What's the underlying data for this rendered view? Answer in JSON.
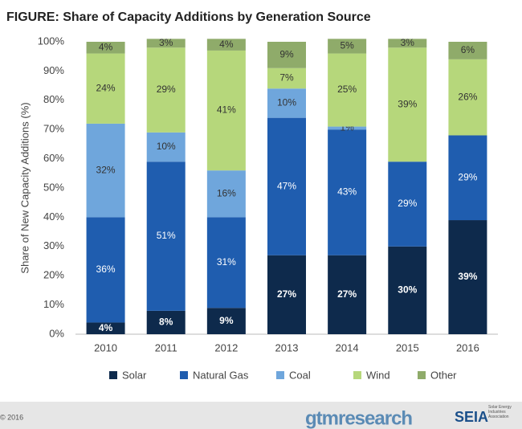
{
  "chart_data": {
    "type": "stacked-bar",
    "title": "FIGURE: Share of Capacity Additions by Generation Source",
    "y_label": "Share of New Capacity Additions (%)",
    "categories": [
      "2010",
      "2011",
      "2012",
      "2013",
      "2014",
      "2015",
      "2016"
    ],
    "series": [
      {
        "name": "Solar",
        "color": "#0e2a4c",
        "values": [
          4,
          8,
          9,
          27,
          27,
          30,
          39
        ],
        "value_labels": [
          "4%",
          "8%",
          "9%",
          "27%",
          "27%",
          "30%",
          "39%"
        ]
      },
      {
        "name": "Natural Gas",
        "color": "#1f5daf",
        "values": [
          36,
          51,
          31,
          47,
          43,
          29,
          29
        ],
        "value_labels": [
          "36%",
          "51%",
          "31%",
          "47%",
          "43%",
          "29%",
          "29%"
        ]
      },
      {
        "name": "Coal",
        "color": "#6fa6dc",
        "values": [
          32,
          10,
          16,
          10,
          1,
          0,
          0
        ],
        "value_labels": [
          "32%",
          "10%",
          "16%",
          "10%",
          "1%",
          null,
          null
        ]
      },
      {
        "name": "Wind",
        "color": "#b6d77b",
        "values": [
          24,
          29,
          41,
          7,
          25,
          39,
          26
        ],
        "value_labels": [
          "24%",
          "29%",
          "41%",
          "7%",
          "25%",
          "39%",
          "26%"
        ]
      },
      {
        "name": "Other",
        "color": "#8fab6a",
        "values": [
          4,
          3,
          4,
          9,
          5,
          3,
          6
        ],
        "value_labels": [
          "4%",
          "3%",
          "4%",
          "9%",
          "5%",
          "3%",
          "6%"
        ]
      }
    ],
    "ylim": [
      0,
      100
    ],
    "yticks": [
      {
        "value": 0,
        "label": "0%"
      },
      {
        "value": 10,
        "label": "10%"
      },
      {
        "value": 20,
        "label": "20%"
      },
      {
        "value": 30,
        "label": "30%"
      },
      {
        "value": 40,
        "label": "40%"
      },
      {
        "value": 50,
        "label": "50%"
      },
      {
        "value": 60,
        "label": "60%"
      },
      {
        "value": 70,
        "label": "70%"
      },
      {
        "value": 80,
        "label": "80%"
      },
      {
        "value": 90,
        "label": "90%"
      },
      {
        "value": 100,
        "label": "100%"
      }
    ],
    "grid": false
  },
  "footer": {
    "copyright": "© 2016",
    "brand": "gtmresearch",
    "logo": "SEIA",
    "logo_caption": "Solar Energy Industries Association"
  }
}
